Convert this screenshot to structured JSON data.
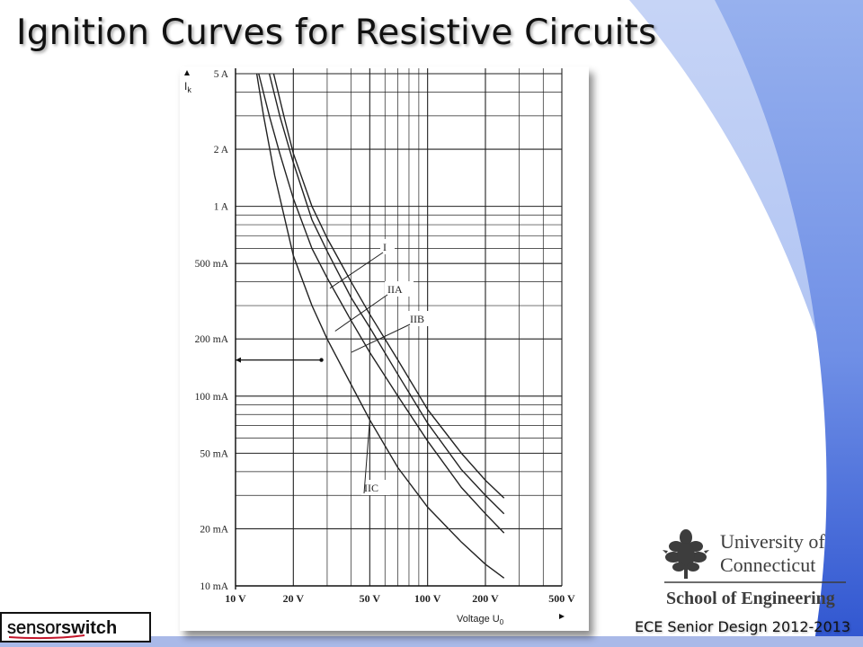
{
  "slide": {
    "title": "Ignition Curves for Resistive Circuits",
    "footer": "ECE Senior Design 2012-2013",
    "accent_color": "#4a6fd8"
  },
  "logos": {
    "uconn": {
      "line1": "University of",
      "line2": "Connecticut",
      "line3": "School of Engineering",
      "icon": "oak-leaf-icon"
    },
    "sensorswitch": {
      "part1": "sensor",
      "part2": "switch"
    }
  },
  "chart_data": {
    "type": "line",
    "x_scale": "log",
    "y_scale": "log",
    "xlabel": "Voltage U",
    "xlabel_sub": "0",
    "ylabel": "I",
    "ylabel_sub": "k",
    "xlim": [
      10,
      500
    ],
    "ylim": [
      0.01,
      5
    ],
    "x_ticks": [
      {
        "value": 10,
        "label": "10 V"
      },
      {
        "value": 20,
        "label": "20 V"
      },
      {
        "value": 50,
        "label": "50 V"
      },
      {
        "value": 100,
        "label": "100 V"
      },
      {
        "value": 200,
        "label": "200 V"
      },
      {
        "value": 500,
        "label": "500 V"
      }
    ],
    "y_ticks": [
      {
        "value": 0.01,
        "label": "10 mA"
      },
      {
        "value": 0.02,
        "label": "20 mA"
      },
      {
        "value": 0.05,
        "label": "50 mA"
      },
      {
        "value": 0.1,
        "label": "100 mA"
      },
      {
        "value": 0.2,
        "label": "200 mA"
      },
      {
        "value": 0.5,
        "label": "500 mA"
      },
      {
        "value": 1,
        "label": "1 A"
      },
      {
        "value": 2,
        "label": "2 A"
      },
      {
        "value": 5,
        "label": "5 A"
      }
    ],
    "series": [
      {
        "name": "I",
        "x": [
          15.8,
          18,
          20,
          25,
          30,
          40,
          50,
          70,
          100,
          150,
          200,
          250
        ],
        "y": [
          5,
          2.9,
          1.9,
          1.0,
          0.68,
          0.4,
          0.27,
          0.155,
          0.085,
          0.05,
          0.036,
          0.029
        ]
      },
      {
        "name": "IIA",
        "x": [
          15,
          17,
          20,
          25,
          30,
          40,
          50,
          70,
          100,
          150,
          200,
          250
        ],
        "y": [
          5,
          3.0,
          1.7,
          0.85,
          0.58,
          0.33,
          0.23,
          0.13,
          0.072,
          0.041,
          0.03,
          0.024
        ]
      },
      {
        "name": "IIB",
        "x": [
          13.2,
          15,
          17,
          20,
          25,
          30,
          40,
          50,
          70,
          100,
          150,
          200,
          250
        ],
        "y": [
          5,
          3.0,
          1.9,
          1.1,
          0.6,
          0.42,
          0.25,
          0.17,
          0.1,
          0.058,
          0.033,
          0.024,
          0.019
        ]
      },
      {
        "name": "IIC",
        "x": [
          12.9,
          14,
          16,
          20,
          25,
          30,
          40,
          50,
          70,
          100,
          150,
          200,
          250
        ],
        "y": [
          5,
          3.0,
          1.45,
          0.55,
          0.3,
          0.2,
          0.115,
          0.075,
          0.042,
          0.026,
          0.017,
          0.013,
          0.011
        ]
      }
    ],
    "reference_point": {
      "x": 28,
      "y": 0.155
    },
    "grid": true,
    "legend": "none"
  }
}
